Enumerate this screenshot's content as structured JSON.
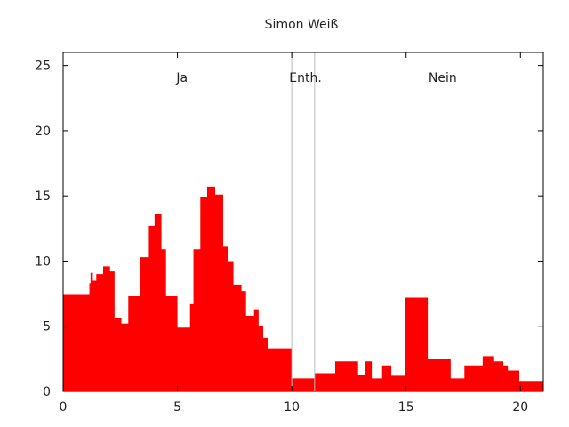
{
  "chart_data": {
    "type": "area",
    "title": "Simon Weiß",
    "xlabel": "",
    "ylabel": "",
    "xlim": [
      0,
      21
    ],
    "ylim": [
      0,
      26
    ],
    "xticks": [
      0,
      5,
      10,
      15,
      20
    ],
    "yticks": [
      0,
      5,
      10,
      15,
      20,
      25
    ],
    "grid": false,
    "colors": {
      "fill": "#ff0000",
      "divider": "#bbbbbb",
      "axis": "#000000"
    },
    "dividers": [
      10,
      11
    ],
    "region_labels": [
      {
        "text": "Ja",
        "x": 5.2
      },
      {
        "text": "Enth.",
        "x": 10.6
      },
      {
        "text": "Nein",
        "x": 16.6
      }
    ],
    "series": [
      {
        "steps": [
          [
            0.0,
            7.4
          ],
          [
            1.15,
            8.3
          ],
          [
            1.2,
            9.1
          ],
          [
            1.3,
            8.5
          ],
          [
            1.45,
            9.0
          ],
          [
            1.75,
            9.6
          ],
          [
            2.05,
            9.2
          ],
          [
            2.25,
            5.6
          ],
          [
            2.55,
            5.2
          ],
          [
            2.85,
            7.3
          ],
          [
            3.35,
            10.3
          ],
          [
            3.75,
            12.7
          ],
          [
            4.0,
            13.6
          ],
          [
            4.3,
            10.9
          ],
          [
            4.5,
            7.3
          ],
          [
            5.0,
            4.9
          ],
          [
            5.55,
            6.7
          ],
          [
            5.7,
            10.9
          ],
          [
            6.0,
            14.9
          ],
          [
            6.3,
            15.7
          ],
          [
            6.65,
            15.1
          ],
          [
            7.0,
            11.1
          ],
          [
            7.2,
            10.0
          ],
          [
            7.45,
            8.2
          ],
          [
            7.8,
            7.7
          ],
          [
            8.0,
            5.8
          ],
          [
            8.35,
            6.3
          ],
          [
            8.55,
            5.0
          ],
          [
            8.75,
            4.1
          ],
          [
            8.95,
            3.3
          ],
          [
            10.0,
            1.0
          ],
          [
            11.0,
            1.4
          ],
          [
            11.9,
            2.3
          ],
          [
            12.9,
            1.3
          ],
          [
            13.2,
            2.3
          ],
          [
            13.5,
            1.0
          ],
          [
            13.95,
            2.0
          ],
          [
            14.35,
            1.2
          ],
          [
            14.95,
            7.2
          ],
          [
            15.95,
            2.5
          ],
          [
            16.95,
            1.0
          ],
          [
            17.55,
            2.0
          ],
          [
            18.35,
            2.7
          ],
          [
            18.85,
            2.3
          ],
          [
            19.25,
            2.0
          ],
          [
            19.45,
            1.6
          ],
          [
            19.95,
            0.8
          ]
        ],
        "x_end": 21.0
      }
    ]
  }
}
